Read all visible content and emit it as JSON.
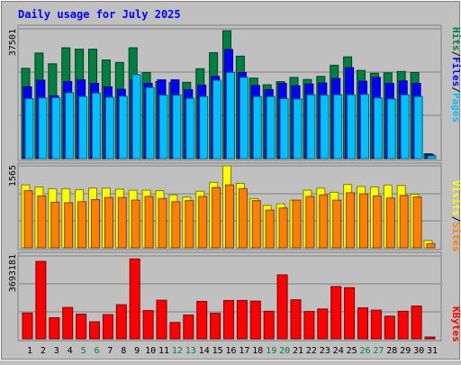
{
  "title": "Daily usage for July 2025",
  "colors": {
    "title": "#0000ff",
    "hits": "#008040",
    "files": "#0000ff",
    "pages": "#00c0ff",
    "visits": "#ffff00",
    "sites": "#ff8000",
    "kbytes": "#ff0000",
    "weekend_label": "#008040"
  },
  "panels": {
    "top": {
      "max_label": "37501",
      "legend": {
        "pages": "Pages",
        "files": "Files",
        "hits": "Hits",
        "sep": "/"
      }
    },
    "middle": {
      "max_label": "1565",
      "legend": {
        "sites": "Sites",
        "visits": "Visits",
        "sep": "/"
      }
    },
    "bottom": {
      "max_label": "3693181",
      "legend": {
        "kbytes": "KBytes"
      }
    }
  },
  "chart_data": {
    "type": "bar",
    "title": "Daily usage for July 2025",
    "categories": [
      "1",
      "2",
      "3",
      "4",
      "5",
      "6",
      "7",
      "8",
      "9",
      "10",
      "11",
      "12",
      "13",
      "14",
      "15",
      "16",
      "17",
      "18",
      "19",
      "20",
      "21",
      "22",
      "23",
      "24",
      "25",
      "26",
      "27",
      "28",
      "29",
      "30",
      "31"
    ],
    "weekend_days": [
      "5",
      "6",
      "12",
      "13",
      "19",
      "20",
      "26",
      "27"
    ],
    "panels": [
      {
        "ylim": [
          0,
          37501
        ],
        "series": [
          {
            "name": "Hits",
            "values": [
              25900,
              30300,
              27200,
              31800,
              31400,
              31400,
              28300,
              27600,
              31800,
              24700,
              22100,
              21800,
              21900,
              25800,
              30400,
              36700,
              29400,
              23100,
              21200,
              22100,
              23300,
              22700,
              23600,
              26800,
              29200,
              25300,
              24500,
              24600,
              25000,
              24700,
              1400
            ]
          },
          {
            "name": "Files",
            "values": [
              20600,
              22500,
              18000,
              22100,
              22600,
              21600,
              20600,
              19900,
              22600,
              21600,
              22600,
              22600,
              19800,
              21100,
              23600,
              31300,
              24700,
              21000,
              19800,
              21600,
              20900,
              21400,
              21700,
              23000,
              26100,
              22200,
              23300,
              21600,
              22300,
              21600,
              1100
            ]
          },
          {
            "name": "Pages",
            "values": [
              17200,
              17400,
              17500,
              18900,
              17800,
              18800,
              17600,
              17900,
              24100,
              20400,
              18200,
              18200,
              17300,
              17800,
              22500,
              24700,
              23300,
              17800,
              17800,
              17200,
              17100,
              18300,
              18200,
              18300,
              18300,
              18400,
              17400,
              17100,
              18300,
              17800,
              800
            ]
          }
        ]
      },
      {
        "ylim": [
          0,
          1565
        ],
        "series": [
          {
            "name": "Visits",
            "values": [
              1200,
              1160,
              1130,
              1130,
              1110,
              1140,
              1140,
              1120,
              1100,
              1100,
              1090,
              1010,
              970,
              1080,
              1250,
              1565,
              1230,
              940,
              810,
              840,
              910,
              1100,
              1140,
              1060,
              1210,
              1170,
              1160,
              1200,
              1190,
              1020,
              140
            ]
          },
          {
            "name": "Sites",
            "values": [
              1090,
              990,
              870,
              860,
              880,
              920,
              960,
              960,
              910,
              980,
              940,
              880,
              900,
              980,
              1150,
              1200,
              1130,
              900,
              720,
              760,
              910,
              980,
              1010,
              910,
              1050,
              1030,
              990,
              950,
              1000,
              970,
              80
            ]
          }
        ]
      },
      {
        "ylim": [
          0,
          3693181
        ],
        "series": [
          {
            "name": "KBytes",
            "values": [
              1150000,
              3450000,
              940000,
              1400000,
              1100000,
              760000,
              1080000,
              1520000,
              3560000,
              1260000,
              1720000,
              730000,
              1060000,
              1670000,
              1140000,
              1710000,
              1710000,
              1680000,
              1230000,
              2850000,
              1740000,
              1220000,
              1330000,
              2330000,
              2280000,
              1380000,
              1280000,
              1010000,
              1230000,
              1460000,
              80000
            ]
          }
        ]
      }
    ]
  }
}
